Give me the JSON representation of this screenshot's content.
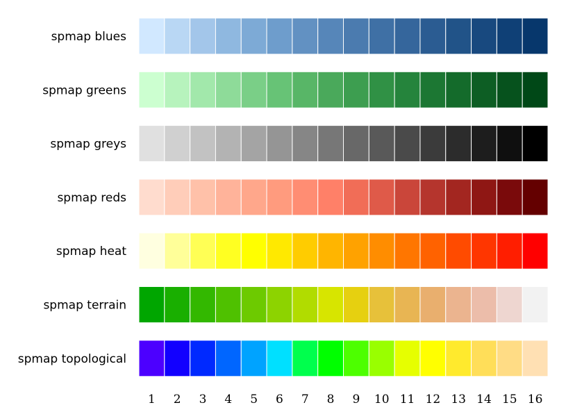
{
  "chart_data": {
    "type": "heatmap",
    "title": "",
    "xlabel": "",
    "ylabel": "",
    "x": [
      1,
      2,
      3,
      4,
      5,
      6,
      7,
      8,
      9,
      10,
      11,
      12,
      13,
      14,
      15,
      16
    ],
    "rows": [
      {
        "label": "spmap blues",
        "colors": [
          "#D1E8FF",
          "#B9D7F4",
          "#A3C6EA",
          "#8FB8E0",
          "#7DAAD6",
          "#6E9DCC",
          "#6291C2",
          "#5686B9",
          "#4B7BAF",
          "#3F70A5",
          "#35669C",
          "#2B5C92",
          "#215388",
          "#18497F",
          "#0F4076",
          "#07376C"
        ]
      },
      {
        "label": "spmap greens",
        "colors": [
          "#CCFFD0",
          "#B7F3BD",
          "#A2E8AB",
          "#8EDB99",
          "#7ACF87",
          "#67C376",
          "#58B667",
          "#4AA95B",
          "#3D9E50",
          "#309145",
          "#25843C",
          "#1C7733",
          "#146B2B",
          "#0D5E24",
          "#06521D",
          "#004817"
        ]
      },
      {
        "label": "spmap greys",
        "colors": [
          "#E0E0E0",
          "#D0D0D0",
          "#C2C2C2",
          "#B3B3B3",
          "#A4A4A4",
          "#959595",
          "#868686",
          "#777777",
          "#686868",
          "#595959",
          "#4A4A4A",
          "#3B3B3B",
          "#2C2C2C",
          "#1D1D1D",
          "#0F0F0F",
          "#000000"
        ]
      },
      {
        "label": "spmap reds",
        "colors": [
          "#FFDCCE",
          "#FFCDB9",
          "#FFC1A9",
          "#FFB39A",
          "#FFA78B",
          "#FF9B7E",
          "#FF8D73",
          "#FF8068",
          "#F16D57",
          "#DF5A49",
          "#CA463A",
          "#B5352D",
          "#A32620",
          "#8F1714",
          "#7A0A0B",
          "#640000"
        ]
      },
      {
        "label": "spmap heat",
        "colors": [
          "#FFFFE0",
          "#FFFF99",
          "#FFFF55",
          "#FFFF22",
          "#FFFF00",
          "#FFE900",
          "#FFCC00",
          "#FFB500",
          "#FFA200",
          "#FF8D00",
          "#FF7600",
          "#FF6200",
          "#FF4B00",
          "#FF3600",
          "#FF1E00",
          "#FF0000"
        ]
      },
      {
        "label": "spmap terrain",
        "colors": [
          "#00A600",
          "#19AF00",
          "#33B800",
          "#4FC100",
          "#6DCA00",
          "#8DD300",
          "#B1DC00",
          "#D7E500",
          "#E6D010",
          "#E7C13A",
          "#E8B553",
          "#E9AF6E",
          "#EBB48F",
          "#ECBDAA",
          "#EED6D0",
          "#F2F2F2"
        ]
      },
      {
        "label": "spmap topological",
        "colors": [
          "#4C00FF",
          "#1200FF",
          "#0029FF",
          "#0066FF",
          "#00A3FF",
          "#00E0FF",
          "#00FF4D",
          "#00FF00",
          "#4DFF00",
          "#99FF00",
          "#E6FF00",
          "#FFFF00",
          "#FFEA2D",
          "#FFDE59",
          "#FFDC85",
          "#FFE0B3"
        ]
      }
    ]
  }
}
